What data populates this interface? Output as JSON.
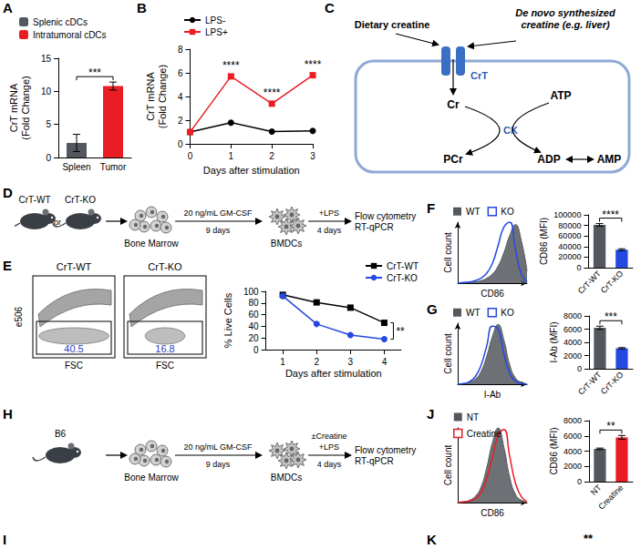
{
  "panel_letters": [
    "A",
    "B",
    "C",
    "D",
    "E",
    "F",
    "G",
    "H",
    "I",
    "J",
    "K"
  ],
  "chart_data": [
    {
      "panel": "A",
      "type": "bar",
      "categories": [
        "Spleen",
        "Tumor"
      ],
      "series": [
        {
          "name": "Splenic cDCs",
          "color": "#54585e",
          "values": [
            2.2,
            null
          ],
          "errors": [
            1.3,
            null
          ]
        },
        {
          "name": "Intratumoral cDCs",
          "color": "#ea1c24",
          "values": [
            null,
            10.8
          ],
          "errors": [
            null,
            0.6
          ]
        }
      ],
      "y_label": "CrT mRNA (Fold Change)",
      "ylim": [
        0,
        15
      ],
      "yticks": [
        0,
        5,
        10,
        15
      ],
      "annotation": "***",
      "legend": "top-left"
    },
    {
      "panel": "B",
      "type": "line",
      "x": [
        0,
        1,
        2,
        3
      ],
      "xlim": [
        0,
        3
      ],
      "xticks": [
        0,
        1,
        2,
        3
      ],
      "ylim": [
        0,
        8
      ],
      "yticks": [
        0,
        2,
        4,
        6,
        8
      ],
      "x_label": "Days after stimulation",
      "y_label": "CrT mRNA (Fold Change)",
      "series": [
        {
          "name": "LPS-",
          "color": "#000000",
          "marker": "circle",
          "values": [
            1,
            1.8,
            1.05,
            1.1
          ]
        },
        {
          "name": "LPS+",
          "color": "#ea1c24",
          "marker": "square",
          "values": [
            1,
            5.7,
            3.4,
            5.8
          ]
        }
      ],
      "annotations": [
        {
          "x": 1,
          "text": "****"
        },
        {
          "x": 2,
          "text": "****"
        },
        {
          "x": 3,
          "text": "****"
        }
      ],
      "legend": "top-left"
    },
    {
      "panel": "E",
      "type": "line",
      "x": [
        1,
        2,
        3,
        4
      ],
      "xlim": [
        0.5,
        4.5
      ],
      "xticks": [
        1,
        2,
        3,
        4
      ],
      "ylim": [
        0,
        100
      ],
      "yticks": [
        0,
        20,
        40,
        60,
        80,
        100
      ],
      "x_label": "Days after stimulation",
      "y_label": "% Live Cells",
      "series": [
        {
          "name": "CrT-WT",
          "color": "#000000",
          "marker": "square",
          "values": [
            94,
            81,
            72,
            46
          ]
        },
        {
          "name": "CrT-KO",
          "color": "#2448e0",
          "marker": "circle",
          "values": [
            92,
            44,
            25,
            18
          ]
        }
      ],
      "annotations": [
        {
          "x": 4,
          "text": "**",
          "between": [
            "CrT-WT",
            "CrT-KO"
          ]
        }
      ],
      "legend": "top-right"
    },
    {
      "panel": "F",
      "type": "histogram",
      "x": [
        0,
        1,
        2,
        3,
        4,
        5,
        6,
        7,
        8,
        9,
        10,
        11,
        12
      ],
      "xlim": [
        0,
        12
      ],
      "ylim": [
        0,
        100
      ],
      "x_label": "CD86",
      "y_label": "Cell count",
      "tick_labels": false,
      "legend": "top-left",
      "series": [
        {
          "name": "WT",
          "type": "area",
          "color": "#54585e",
          "values": [
            0,
            0,
            1,
            2,
            4,
            8,
            15,
            28,
            50,
            78,
            96,
            70,
            20
          ]
        },
        {
          "name": "KO",
          "type": "line",
          "color": "#2448e0",
          "values": [
            0,
            1,
            2,
            4,
            8,
            16,
            32,
            62,
            92,
            100,
            55,
            15,
            2
          ]
        }
      ]
    },
    {
      "panel": "F",
      "type": "bar",
      "categories": [
        "CrT-WT",
        "CrT-KO"
      ],
      "values": [
        81000,
        34000
      ],
      "errors": [
        2500,
        1800
      ],
      "colors": [
        "#54585e",
        "#2448e0"
      ],
      "y_label": "CD86 (MFI)",
      "ylim": [
        0,
        100000
      ],
      "yticks": [
        0,
        20000,
        40000,
        60000,
        80000,
        100000
      ],
      "annotation": "****"
    },
    {
      "panel": "G",
      "type": "histogram",
      "x": [
        0,
        1,
        2,
        3,
        4,
        5,
        6,
        7,
        8,
        9,
        10,
        11,
        12
      ],
      "xlim": [
        0,
        12
      ],
      "ylim": [
        0,
        100
      ],
      "x_label": "I-Ab",
      "y_label": "Cell count",
      "tick_labels": false,
      "legend": "top-left",
      "series": [
        {
          "name": "WT",
          "type": "area",
          "color": "#54585e",
          "values": [
            0,
            1,
            3,
            8,
            20,
            45,
            78,
            98,
            72,
            32,
            10,
            3,
            0
          ]
        },
        {
          "name": "KO",
          "type": "line",
          "color": "#2448e0",
          "values": [
            0,
            1,
            4,
            12,
            30,
            62,
            95,
            90,
            50,
            18,
            5,
            1,
            0
          ]
        }
      ]
    },
    {
      "panel": "G",
      "type": "bar",
      "categories": [
        "CrT-WT",
        "CrT-KO"
      ],
      "values": [
        6200,
        3100
      ],
      "errors": [
        250,
        100
      ],
      "colors": [
        "#54585e",
        "#2448e0"
      ],
      "y_label": "I-Ab (MFI)",
      "ylim": [
        0,
        8000
      ],
      "yticks": [
        0,
        2000,
        4000,
        6000,
        8000
      ],
      "annotation": "***"
    },
    {
      "panel": "J",
      "type": "histogram",
      "x": [
        0,
        1,
        2,
        3,
        4,
        5,
        6,
        7,
        8,
        9,
        10,
        11,
        12
      ],
      "xlim": [
        0,
        12
      ],
      "ylim": [
        0,
        100
      ],
      "x_label": "CD86",
      "y_label": "Cell count",
      "tick_labels": false,
      "legend": "top-left",
      "series": [
        {
          "name": "NT",
          "type": "area",
          "color": "#54585e",
          "values": [
            0,
            1,
            3,
            8,
            20,
            46,
            80,
            100,
            74,
            34,
            11,
            3,
            0
          ]
        },
        {
          "name": "Creatine",
          "type": "line",
          "color": "#ea1c24",
          "values": [
            0,
            1,
            2,
            5,
            13,
            32,
            60,
            90,
            98,
            62,
            26,
            8,
            1
          ]
        }
      ]
    },
    {
      "panel": "J",
      "type": "bar",
      "categories": [
        "NT",
        "Creatine"
      ],
      "values": [
        4300,
        5800
      ],
      "errors": [
        100,
        250
      ],
      "colors": [
        "#54585e",
        "#ea1c24"
      ],
      "y_label": "CD86 (MFI)",
      "ylim": [
        0,
        8000
      ],
      "yticks": [
        0,
        2000,
        4000,
        6000,
        8000
      ],
      "annotation": "**"
    }
  ],
  "flow_plots": {
    "panel": "E",
    "y_label": "e506",
    "x_label": "FSC",
    "plots": [
      {
        "title": "CrT-WT",
        "gate_value": 40.5
      },
      {
        "title": "CrT-KO",
        "gate_value": 16.8
      }
    ]
  },
  "diagrams": {
    "C": {
      "sources": [
        "Dietary creatine",
        "De novo synthesized creatine (e.g. liver)"
      ],
      "transporter": "CrT",
      "enzyme": "CK",
      "metabolites": [
        "Cr",
        "ATP",
        "PCr",
        "ADP",
        "AMP"
      ]
    },
    "D": {
      "mice": [
        "CrT-WT",
        "CrT-KO"
      ],
      "joiner": "or",
      "stages": [
        "Bone Marrow",
        "BMDCs"
      ],
      "steps": [
        {
          "above": [
            "20 ng/mL GM-CSF"
          ],
          "below": "9 days"
        },
        {
          "above": [
            "+LPS"
          ],
          "below": "4 days"
        }
      ],
      "readout": [
        "Flow cytometry",
        "RT-qPCR"
      ]
    },
    "H": {
      "mice": [
        "B6"
      ],
      "stages": [
        "Bone Marrow",
        "BMDCs"
      ],
      "steps": [
        {
          "above": [
            "20 ng/mL GM-CSF"
          ],
          "below": "9 days"
        },
        {
          "above": [
            "±Creatine",
            "+LPS"
          ],
          "below": "4 days"
        }
      ],
      "readout": [
        "Flow cytometry",
        "RT-qPCR"
      ]
    }
  },
  "cut_off_annotation": "**"
}
